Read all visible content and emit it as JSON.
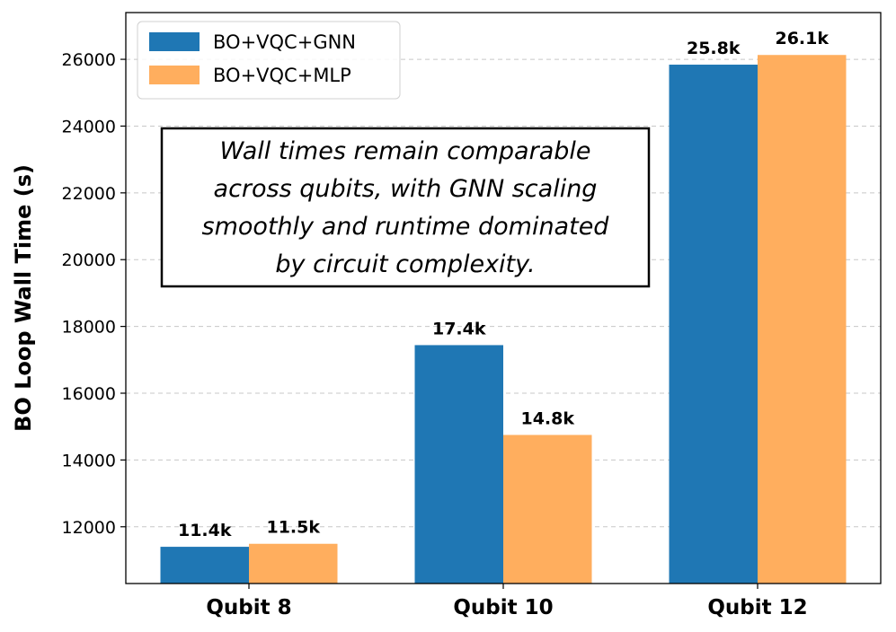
{
  "chart_data": {
    "type": "bar",
    "categories": [
      "Qubit 8",
      "Qubit 10",
      "Qubit 12"
    ],
    "series": [
      {
        "name": "BO+VQC+GNN",
        "values": [
          11400,
          17440,
          25840
        ],
        "labels": [
          "11.4k",
          "17.4k",
          "25.8k"
        ],
        "color": "#1f77b4"
      },
      {
        "name": "BO+VQC+MLP",
        "values": [
          11490,
          14750,
          26130
        ],
        "labels": [
          "11.5k",
          "14.8k",
          "26.1k"
        ],
        "color": "#ffae5e"
      }
    ],
    "xlabel": "",
    "ylabel": "BO Loop Wall Time (s)",
    "ylim": [
      10300,
      27400
    ],
    "yticks": [
      12000,
      14000,
      16000,
      18000,
      20000,
      22000,
      24000,
      26000
    ],
    "grid": "y-dashed",
    "legend_position": "top-left",
    "annotation": {
      "lines": [
        "Wall times remain comparable",
        "across qubits, with GNN scaling",
        "smoothly and runtime dominated",
        "by circuit complexity."
      ]
    }
  }
}
